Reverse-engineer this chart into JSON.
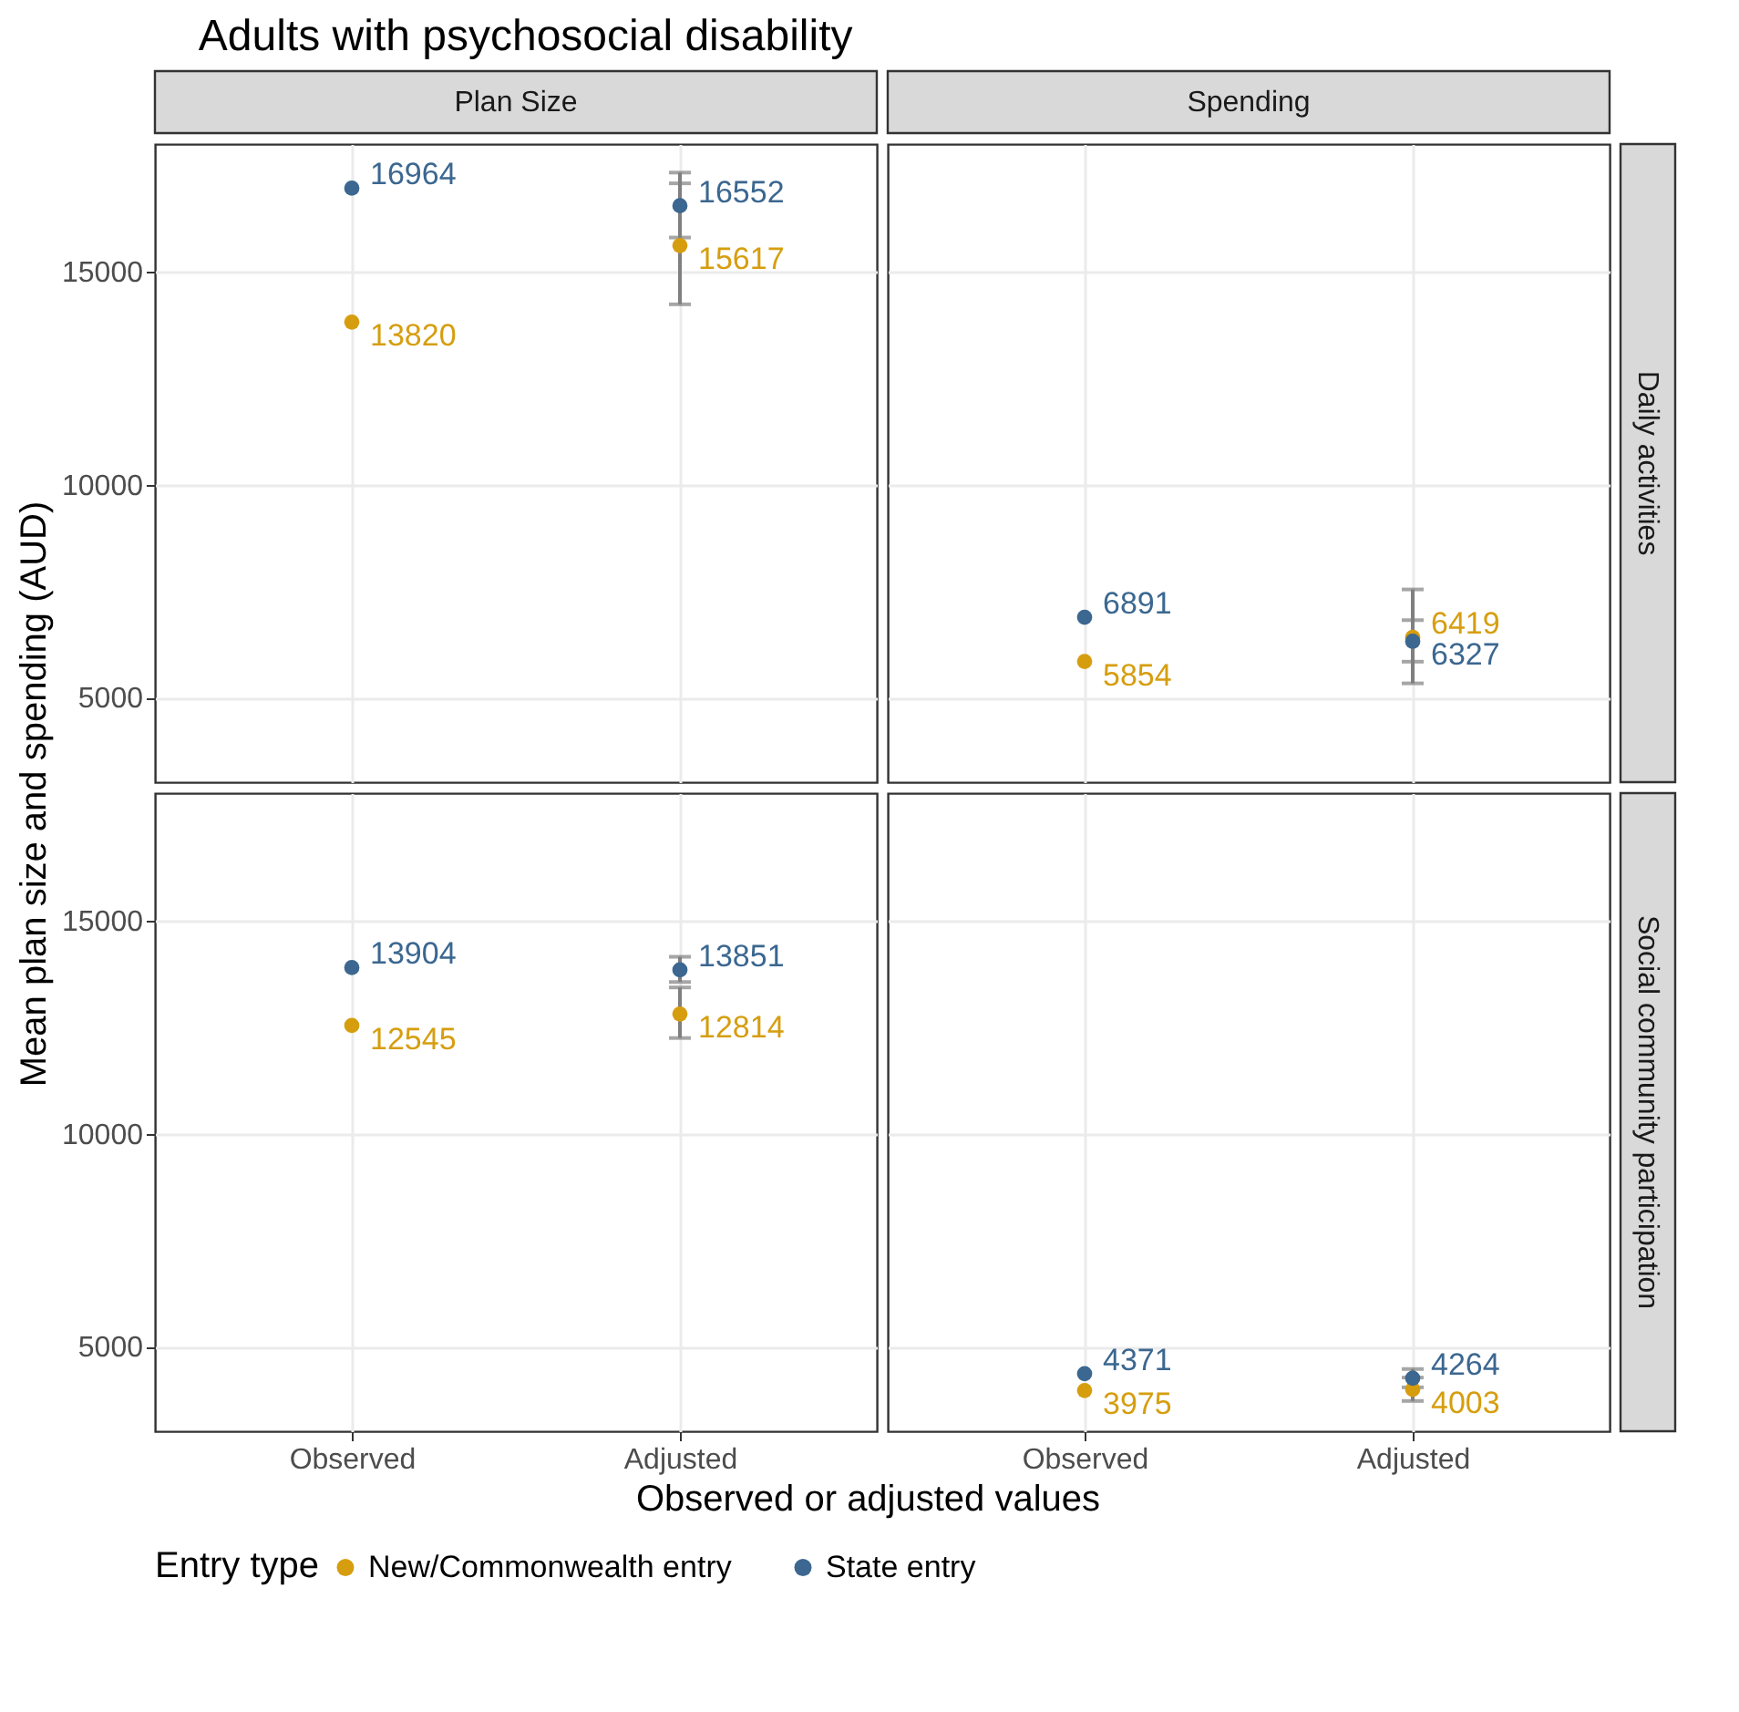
{
  "chart_data": [
    {
      "type": "scatter",
      "title": "Adults with psychosocial disability",
      "subtitle": "Plan Size",
      "ylabel": "Mean plan size and spending (AUD)",
      "categories": [
        "Observed",
        "Adjusted"
      ],
      "series": [
        {
          "name": "New/Commonwealth entry",
          "color": "#d69e0f",
          "values": [
            13820,
            15617
          ],
          "errors": [
            null,
            [
              14237,
              17077
            ]
          ]
        },
        {
          "name": "State entry",
          "color": "#3b6790",
          "values": [
            16964,
            16552
          ],
          "errors": [
            null,
            [
              15805,
              17330
            ]
          ]
        }
      ],
      "ylim": [
        3020,
        18000
      ],
      "yticks": [
        5000,
        10000,
        15000
      ],
      "grid": true,
      "legend": "bottom",
      "data_labels": true,
      "marker": "circle",
      "tick_labels": "y"
    },
    {
      "type": "scatter",
      "subtitle": "Spending",
      "y2label": "Daily activities",
      "categories": [
        "Observed",
        "Adjusted"
      ],
      "series": [
        {
          "name": "New/Commonwealth entry",
          "color": "#d69e0f",
          "values": [
            5854,
            6419
          ],
          "errors": [
            null,
            [
              5339,
              7544
            ]
          ]
        },
        {
          "name": "State entry",
          "color": "#3b6790",
          "values": [
            6891,
            6327
          ],
          "errors": [
            null,
            [
              5848,
              6823
            ]
          ]
        }
      ],
      "ylim": [
        3020,
        18000
      ],
      "yticks": [
        5000,
        10000,
        15000
      ],
      "grid": true,
      "data_labels": true,
      "marker": "circle",
      "tick_labels": false
    },
    {
      "type": "scatter",
      "xlabel": "Observed or adjusted values",
      "legend_title": "Entry type",
      "categories": [
        "Observed",
        "Adjusted"
      ],
      "series": [
        {
          "name": "New/Commonwealth entry",
          "color": "#d69e0f",
          "values": [
            12545,
            12814
          ],
          "errors": [
            null,
            [
              12250,
              13438
            ]
          ]
        },
        {
          "name": "State entry",
          "color": "#3b6790",
          "values": [
            13904,
            13851
          ],
          "errors": [
            null,
            [
              13565,
              14158
            ]
          ]
        }
      ],
      "ylim": [
        3020,
        18000
      ],
      "yticks": [
        5000,
        10000,
        15000
      ],
      "grid": true,
      "data_labels": true,
      "marker": "circle"
    },
    {
      "type": "scatter",
      "y2label": "Social community participation",
      "categories": [
        "Observed",
        "Adjusted"
      ],
      "series": [
        {
          "name": "New/Commonwealth entry",
          "color": "#d69e0f",
          "values": [
            3975,
            4003
          ],
          "errors": [
            null,
            [
              3730,
              4280
            ]
          ]
        },
        {
          "name": "State entry",
          "color": "#3b6790",
          "values": [
            4371,
            4264
          ],
          "errors": [
            null,
            [
              4050,
              4480
            ]
          ]
        }
      ],
      "ylim": [
        3020,
        18000
      ],
      "yticks": [
        5000,
        10000,
        15000
      ],
      "grid": true,
      "data_labels": true,
      "marker": "circle",
      "tick_labels": "x"
    }
  ]
}
